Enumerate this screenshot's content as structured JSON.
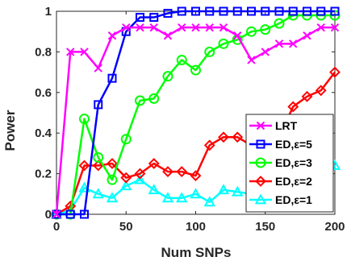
{
  "chart_data": {
    "type": "line",
    "xlabel": "Num SNPs",
    "ylabel": "Power",
    "xlim": [
      0,
      200
    ],
    "ylim": [
      0,
      1
    ],
    "xticks": [
      0,
      50,
      100,
      150,
      200
    ],
    "yticks": [
      0,
      0.2,
      0.4,
      0.6,
      0.8,
      1
    ],
    "ytick_labels": [
      "0",
      "0.2",
      "0.4",
      "0.6",
      "0.8",
      "1"
    ],
    "grid": false,
    "legend_position": "bottom-right",
    "x": [
      0,
      10,
      20,
      30,
      40,
      50,
      60,
      70,
      80,
      90,
      100,
      110,
      120,
      130,
      140,
      150,
      160,
      170,
      180,
      190,
      200
    ],
    "series": [
      {
        "name": "LRT",
        "color": "#ff00ff",
        "marker": "x",
        "values": [
          0.0,
          0.8,
          0.8,
          0.72,
          0.88,
          0.92,
          0.92,
          0.92,
          0.88,
          0.92,
          0.92,
          0.92,
          0.92,
          0.88,
          0.76,
          0.8,
          0.84,
          0.84,
          0.88,
          0.92,
          0.92
        ]
      },
      {
        "name": "ED,ε=5",
        "color": "#0000ff",
        "marker": "square",
        "values": [
          0.0,
          0.0,
          0.0,
          0.54,
          0.67,
          0.9,
          0.97,
          0.97,
          0.99,
          1.0,
          1.0,
          1.0,
          1.0,
          1.0,
          1.0,
          1.0,
          1.0,
          1.0,
          1.0,
          1.0,
          1.0
        ]
      },
      {
        "name": "ED,ε=3",
        "color": "#00ff00",
        "marker": "circle",
        "values": [
          0.0,
          0.0,
          0.47,
          0.28,
          0.17,
          0.37,
          0.56,
          0.57,
          0.68,
          0.76,
          0.71,
          0.8,
          0.84,
          0.86,
          0.9,
          0.91,
          0.94,
          0.98,
          0.98,
          0.98,
          0.98
        ]
      },
      {
        "name": "ED,ε=2",
        "color": "#ff0000",
        "marker": "diamond",
        "values": [
          0.0,
          0.04,
          0.24,
          0.24,
          0.25,
          0.18,
          0.2,
          0.25,
          0.21,
          0.21,
          0.19,
          0.34,
          0.38,
          0.38,
          0.34,
          0.38,
          0.38,
          0.53,
          0.58,
          0.61,
          0.7
        ]
      },
      {
        "name": "ED,ε=1",
        "color": "#00ffff",
        "marker": "triangle",
        "values": [
          0.0,
          0.02,
          0.13,
          0.1,
          0.08,
          0.14,
          0.17,
          0.12,
          0.08,
          0.08,
          0.1,
          0.06,
          0.12,
          0.11,
          0.1,
          0.1,
          0.1,
          0.12,
          0.12,
          0.14,
          0.24
        ]
      }
    ]
  }
}
